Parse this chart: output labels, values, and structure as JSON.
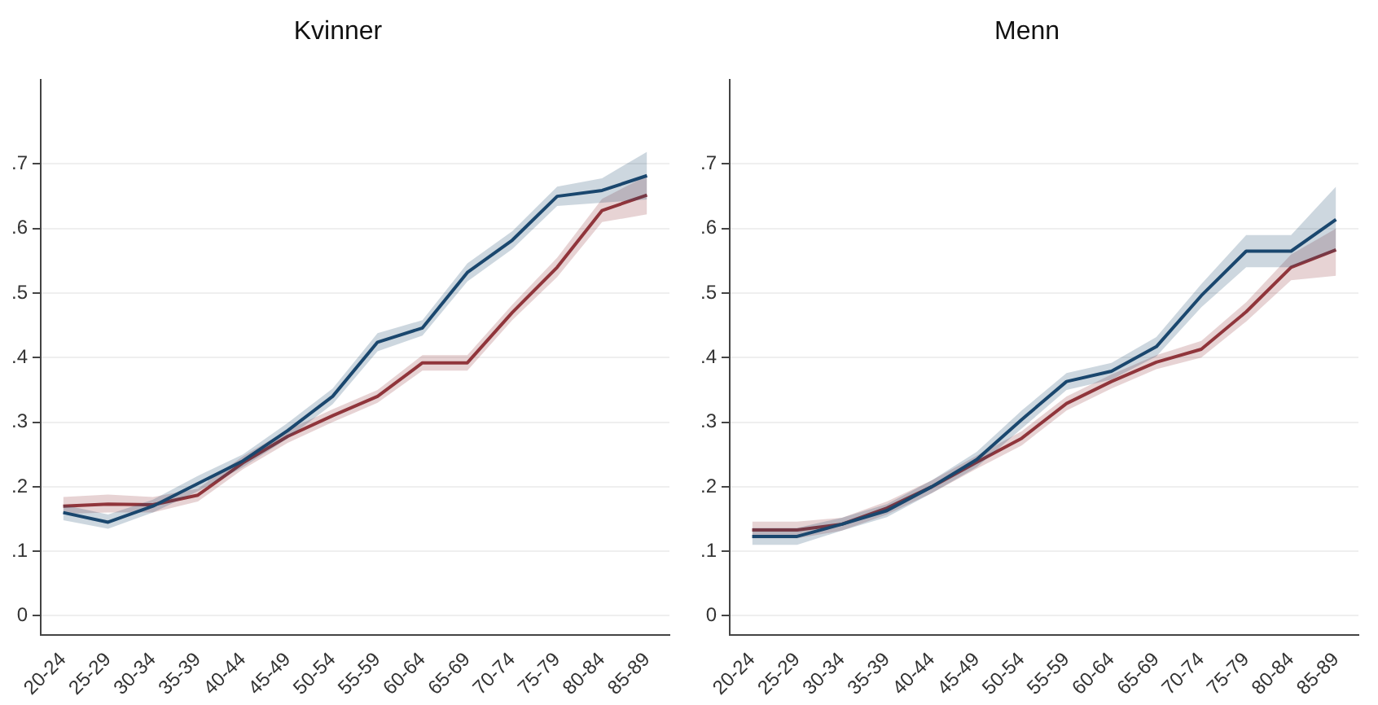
{
  "chart_data": [
    {
      "type": "line",
      "title": "Kvinner",
      "categories": [
        "20-24",
        "25-29",
        "30-34",
        "35-39",
        "40-44",
        "45-49",
        "50-54",
        "55-59",
        "60-64",
        "65-69",
        "70-74",
        "75-79",
        "80-84",
        "85-89"
      ],
      "series": [
        {
          "color": "#1a476f",
          "values": [
            0.16,
            0.145,
            0.17,
            0.205,
            0.24,
            0.287,
            0.34,
            0.424,
            0.446,
            0.532,
            0.582,
            0.65,
            0.659,
            0.682
          ],
          "lower": [
            0.148,
            0.135,
            0.16,
            0.193,
            0.23,
            0.275,
            0.328,
            0.41,
            0.434,
            0.518,
            0.568,
            0.635,
            0.64,
            0.645
          ],
          "upper": [
            0.172,
            0.157,
            0.18,
            0.217,
            0.25,
            0.299,
            0.352,
            0.438,
            0.458,
            0.546,
            0.596,
            0.665,
            0.678,
            0.719
          ]
        },
        {
          "color": "#90353b",
          "values": [
            0.17,
            0.173,
            0.172,
            0.187,
            0.237,
            0.278,
            0.31,
            0.34,
            0.392,
            0.392,
            0.47,
            0.54,
            0.628,
            0.652
          ],
          "lower": [
            0.158,
            0.16,
            0.16,
            0.177,
            0.227,
            0.268,
            0.3,
            0.33,
            0.38,
            0.38,
            0.458,
            0.525,
            0.61,
            0.622
          ],
          "upper": [
            0.184,
            0.188,
            0.184,
            0.197,
            0.247,
            0.288,
            0.32,
            0.35,
            0.404,
            0.404,
            0.482,
            0.555,
            0.646,
            0.682
          ]
        }
      ],
      "ylim": [
        -0.03,
        0.83
      ],
      "yticks": [
        0,
        {
          "value": 0.1,
          "label": ".1"
        },
        {
          "value": 0.2,
          "label": ".2"
        },
        {
          "value": 0.3,
          "label": ".3"
        },
        {
          "value": 0.4,
          "label": ".4"
        },
        {
          "value": 0.5,
          "label": ".5"
        },
        {
          "value": 0.6,
          "label": ".6"
        },
        {
          "value": 0.7,
          "label": ".7"
        }
      ],
      "grid": "y"
    },
    {
      "type": "line",
      "title": "Menn",
      "categories": [
        "20-24",
        "25-29",
        "30-34",
        "35-39",
        "40-44",
        "45-49",
        "50-54",
        "55-59",
        "60-64",
        "65-69",
        "70-74",
        "75-79",
        "80-84",
        "85-89"
      ],
      "series": [
        {
          "color": "#1a476f",
          "values": [
            0.123,
            0.123,
            0.142,
            0.163,
            0.2,
            0.242,
            0.304,
            0.363,
            0.379,
            0.417,
            0.496,
            0.565,
            0.565,
            0.614
          ],
          "lower": [
            0.11,
            0.11,
            0.132,
            0.153,
            0.19,
            0.23,
            0.29,
            0.35,
            0.366,
            0.402,
            0.478,
            0.54,
            0.54,
            0.565
          ],
          "upper": [
            0.136,
            0.136,
            0.152,
            0.173,
            0.21,
            0.254,
            0.318,
            0.376,
            0.392,
            0.432,
            0.514,
            0.59,
            0.59,
            0.665
          ]
        },
        {
          "color": "#90353b",
          "values": [
            0.133,
            0.133,
            0.142,
            0.167,
            0.2,
            0.238,
            0.275,
            0.329,
            0.363,
            0.393,
            0.413,
            0.471,
            0.54,
            0.567
          ],
          "lower": [
            0.12,
            0.12,
            0.132,
            0.157,
            0.19,
            0.228,
            0.264,
            0.318,
            0.352,
            0.382,
            0.4,
            0.456,
            0.52,
            0.527
          ],
          "upper": [
            0.146,
            0.146,
            0.152,
            0.177,
            0.21,
            0.248,
            0.286,
            0.34,
            0.374,
            0.404,
            0.426,
            0.486,
            0.56,
            0.6
          ]
        }
      ],
      "ylim": [
        -0.03,
        0.83
      ],
      "yticks": [
        0,
        {
          "value": 0.1,
          "label": ".1"
        },
        {
          "value": 0.2,
          "label": ".2"
        },
        {
          "value": 0.3,
          "label": ".3"
        },
        {
          "value": 0.4,
          "label": ".4"
        },
        {
          "value": 0.5,
          "label": ".5"
        },
        {
          "value": 0.6,
          "label": ".6"
        },
        {
          "value": 0.7,
          "label": ".7"
        }
      ],
      "grid": "y"
    }
  ]
}
